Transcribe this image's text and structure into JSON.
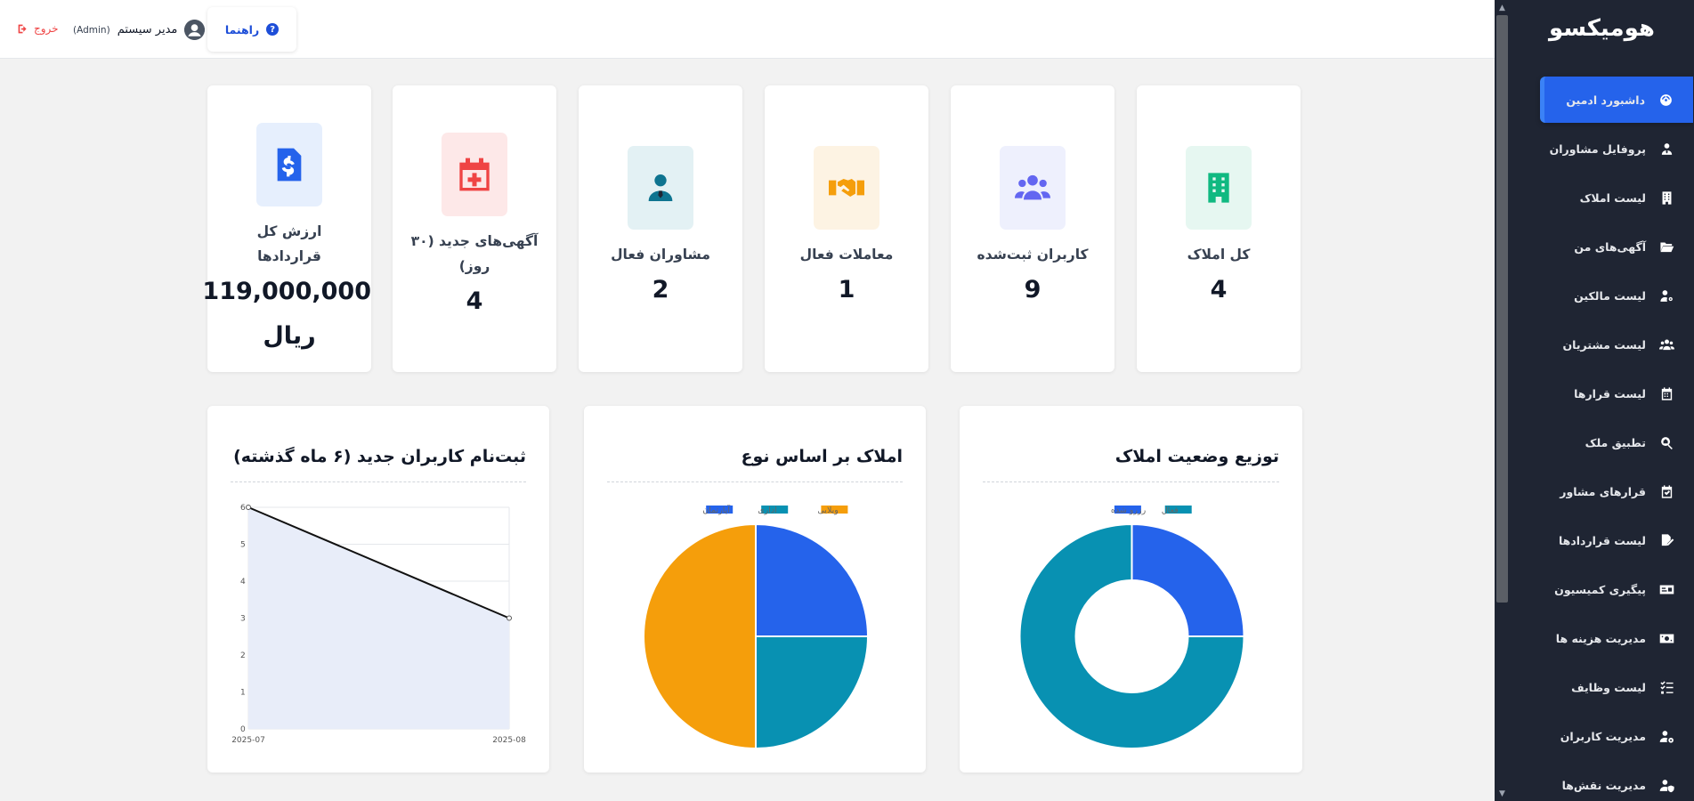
{
  "sidebar": {
    "brand": "هومیکسو",
    "items": [
      {
        "label": "داشبورد ادمین",
        "icon": "dashboard-gauge-icon",
        "active": true
      },
      {
        "label": "پروفایل مشاوران",
        "icon": "user-tie-icon"
      },
      {
        "label": "لیست املاک",
        "icon": "building-icon"
      },
      {
        "label": "آگهی‌های من",
        "icon": "folder-open-icon"
      },
      {
        "label": "لیست مالکین",
        "icon": "user-key-icon"
      },
      {
        "label": "لیست مشتریان",
        "icon": "users-icon"
      },
      {
        "label": "لیست قرارها",
        "icon": "calendar-icon"
      },
      {
        "label": "تطبیق ملک",
        "icon": "search-house-icon"
      },
      {
        "label": "قرارهای مشاور",
        "icon": "calendar-check-icon"
      },
      {
        "label": "لیست قراردادها",
        "icon": "file-signature-icon"
      },
      {
        "label": "پیگیری کمیسیون",
        "icon": "id-card-icon"
      },
      {
        "label": "مدیریت هزینه ها",
        "icon": "money-bill-icon"
      },
      {
        "label": "لیست وظایف",
        "icon": "list-check-icon"
      },
      {
        "label": "مدیریت کاربران",
        "icon": "users-gear-icon"
      },
      {
        "label": "مدیریت نقش‌ها",
        "icon": "user-shield-icon"
      }
    ]
  },
  "header": {
    "logout_label": "خروج",
    "user_name": "مدیر سیستم",
    "user_role": "(Admin)",
    "help_label": "راهنما"
  },
  "stats": [
    {
      "label": "کل املاک",
      "value": "4",
      "icon": "building-icon",
      "color": "#10b981",
      "bg": "#e6f7f1"
    },
    {
      "label": "کاربران ثبت‌شده",
      "value": "9",
      "icon": "users-icon",
      "color": "#6366f1",
      "bg": "#eef0fd"
    },
    {
      "label": "معاملات فعال",
      "value": "1",
      "icon": "handshake-icon",
      "color": "#f59e0b",
      "bg": "#fdf3e3"
    },
    {
      "label": "مشاوران فعال",
      "value": "2",
      "icon": "user-tie-icon",
      "color": "#0e7490",
      "bg": "#e3f1f4"
    },
    {
      "label": "آگهی‌های جدید (۳۰ روز)",
      "value": "4",
      "icon": "calendar-plus-icon",
      "color": "#ef4444",
      "bg": "#fde8e8"
    },
    {
      "label": "ارزش کل قراردادها",
      "value": "119,000,000",
      "value2": "ریال",
      "icon": "file-invoice-dollar-icon",
      "color": "#2563eb",
      "bg": "#e6effd"
    }
  ],
  "charts": {
    "status": {
      "title": "توزیع وضعیت املاک",
      "chart_data": {
        "type": "pie",
        "variant": "doughnut",
        "categories": [
          "فعال",
          "رزرو شده"
        ],
        "values": [
          3,
          1
        ],
        "colors": [
          "#0891b2",
          "#2563eb"
        ],
        "legend": "top"
      }
    },
    "type": {
      "title": "املاک بر اساس نوع",
      "chart_data": {
        "type": "pie",
        "categories": [
          "ویلایی",
          "اداری",
          "آپارتمان"
        ],
        "values": [
          2,
          1,
          1
        ],
        "colors": [
          "#f59e0b",
          "#0891b2",
          "#2563eb"
        ],
        "legend": "top"
      }
    },
    "registrations": {
      "title": "ثبت‌نام کاربران جدید (۶ ماه گذشته)",
      "chart_data": {
        "type": "area",
        "x": [
          "2025-07",
          "2025-08"
        ],
        "y": [
          6,
          3
        ],
        "ylim": [
          0,
          6
        ],
        "yticks": [
          "0",
          "1",
          "2",
          "3",
          "4",
          "5",
          "6"
        ],
        "grid": true,
        "line_color": "#111111",
        "fill_color": "#e8edf9"
      }
    }
  }
}
